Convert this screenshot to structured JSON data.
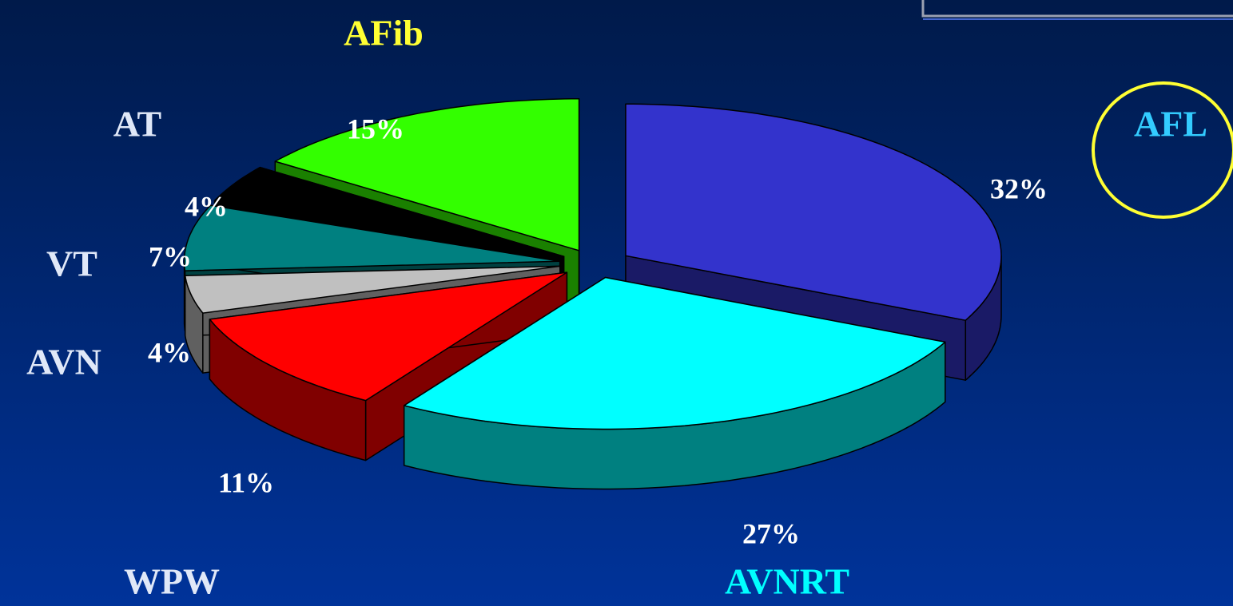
{
  "chart_data": {
    "type": "pie",
    "three_d": true,
    "exploded": true,
    "categories": [
      "AFL",
      "AVNRT",
      "WPW",
      "AVN",
      "VT",
      "AT",
      "AFib"
    ],
    "values": [
      32,
      27,
      11,
      4,
      7,
      4,
      15
    ],
    "value_labels": [
      "32%",
      "27%",
      "11%",
      "4%",
      "7%",
      "4%",
      "15%"
    ],
    "colors": [
      "#3333cc",
      "#00ffff",
      "#ff0000",
      "#c0c0c0",
      "#008080",
      "#000000",
      "#33ff00"
    ],
    "label_colors": [
      "#33ccff",
      "#00ffff",
      "#e0e8f8",
      "#e0e8f8",
      "#e0e8f8",
      "#e0e8f8",
      "#ffff33"
    ]
  }
}
